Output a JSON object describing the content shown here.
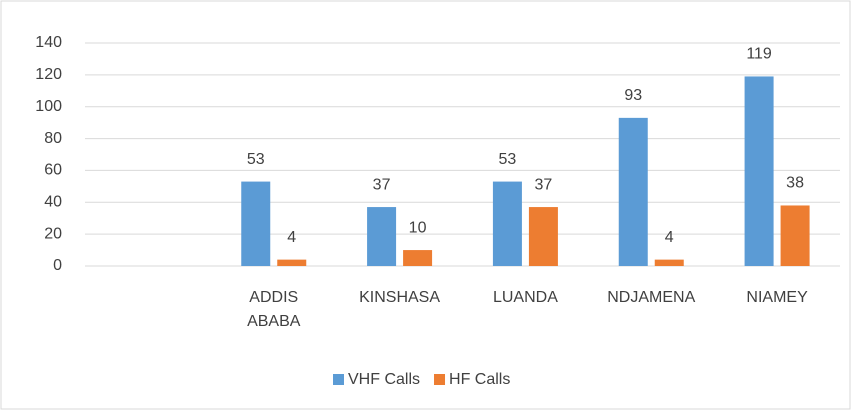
{
  "chart_data": {
    "type": "bar",
    "categories": [
      null,
      "ADDIS ABABA",
      "KINSHASA",
      "LUANDA",
      "NDJAMENA",
      "NIAMEY"
    ],
    "series": [
      {
        "name": "VHF Calls",
        "color": "#5b9bd5",
        "values": [
          null,
          53,
          37,
          53,
          93,
          119
        ]
      },
      {
        "name": "HF Calls",
        "color": "#ed7d31",
        "values": [
          null,
          4,
          10,
          37,
          4,
          38
        ]
      }
    ],
    "ylim": [
      0,
      140
    ],
    "yticks": [
      0,
      20,
      40,
      60,
      80,
      100,
      120,
      140
    ],
    "grid": true,
    "legend": "bottom"
  }
}
